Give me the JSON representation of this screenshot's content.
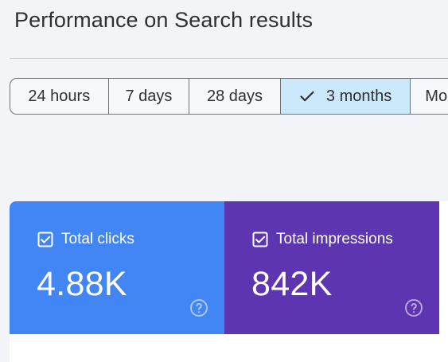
{
  "header": {
    "title": "Performance on Search results"
  },
  "date_range": {
    "options": [
      "24 hours",
      "7 days",
      "28 days",
      "3 months",
      "Mo"
    ],
    "selected": "3 months"
  },
  "metrics": [
    {
      "label": "Total clicks",
      "value": "4.88K",
      "color": "#4285f4",
      "checked": true
    },
    {
      "label": "Total impressions",
      "value": "842K",
      "color": "#5e35b1",
      "checked": true
    }
  ],
  "icons": {
    "selected_option": "check-icon",
    "metric_toggle": "checkbox-icon",
    "metric_help": "help-icon"
  }
}
